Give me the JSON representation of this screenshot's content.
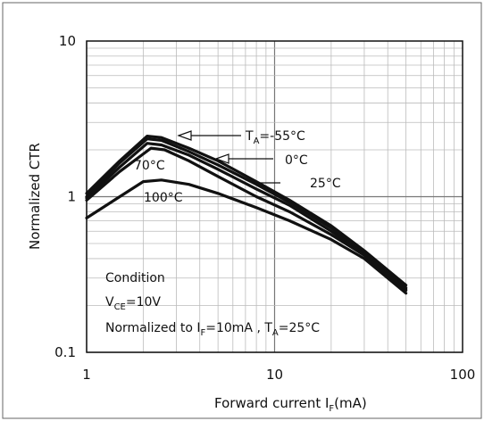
{
  "chart_data": {
    "type": "line",
    "xlabel": "Forward current I",
    "xlabel_sub": "F",
    "xlabel_unit": "(mA)",
    "ylabel": "Normalized CTR",
    "xscale": "log",
    "yscale": "log",
    "xlim": [
      1,
      100
    ],
    "ylim": [
      0.1,
      10
    ],
    "grid": true,
    "x_ticks": [
      {
        "value": 1,
        "label": "1"
      },
      {
        "value": 10,
        "label": "10"
      },
      {
        "value": 100,
        "label": "100"
      }
    ],
    "y_ticks": [
      {
        "value": 0.1,
        "label": "0.1"
      },
      {
        "value": 1,
        "label": "1"
      },
      {
        "value": 10,
        "label": "10"
      }
    ],
    "series": [
      {
        "name": "-55°C",
        "x": [
          1,
          1.5,
          2.1,
          2.5,
          3.5,
          5,
          8,
          12,
          20,
          30,
          50
        ],
        "y": [
          1.05,
          1.7,
          2.45,
          2.4,
          2.05,
          1.7,
          1.25,
          0.95,
          0.65,
          0.45,
          0.27
        ]
      },
      {
        "name": "0°C",
        "x": [
          1,
          1.5,
          2.1,
          2.5,
          3.5,
          5,
          8,
          12,
          20,
          30,
          50
        ],
        "y": [
          1.0,
          1.65,
          2.35,
          2.3,
          1.95,
          1.6,
          1.2,
          0.92,
          0.63,
          0.44,
          0.26
        ]
      },
      {
        "name": "25°C",
        "x": [
          1,
          1.5,
          2.1,
          2.5,
          3.5,
          5,
          8,
          12,
          20,
          30,
          50
        ],
        "y": [
          0.98,
          1.55,
          2.2,
          2.15,
          1.85,
          1.5,
          1.12,
          0.88,
          0.6,
          0.43,
          0.255
        ]
      },
      {
        "name": "70°C",
        "x": [
          1,
          1.5,
          2.2,
          2.6,
          3.5,
          5,
          8,
          12,
          20,
          30,
          50
        ],
        "y": [
          0.95,
          1.45,
          2.05,
          2.0,
          1.7,
          1.35,
          1.0,
          0.8,
          0.57,
          0.42,
          0.25
        ]
      },
      {
        "name": "100°C",
        "x": [
          1,
          1.5,
          2.0,
          2.5,
          3.5,
          5,
          8,
          12,
          20,
          30,
          50
        ],
        "y": [
          0.73,
          1.0,
          1.25,
          1.28,
          1.2,
          1.05,
          0.85,
          0.7,
          0.53,
          0.4,
          0.24
        ]
      }
    ],
    "annotations": {
      "ta_label": "T",
      "ta_sub": "A",
      "minus55": "=-55°C",
      "zero": "0°C",
      "twentyfive": "25°C",
      "seventy": "70°C",
      "hundred": "100°C",
      "condition": "Condition",
      "vce_v": "V",
      "vce_sub": "CE",
      "vce_val": "=10V",
      "norm_prefix": "Normalized to I",
      "norm_if_sub": "F",
      "norm_mid": "=10mA , T",
      "norm_ta_sub": "A",
      "norm_end": "=25°C"
    }
  }
}
